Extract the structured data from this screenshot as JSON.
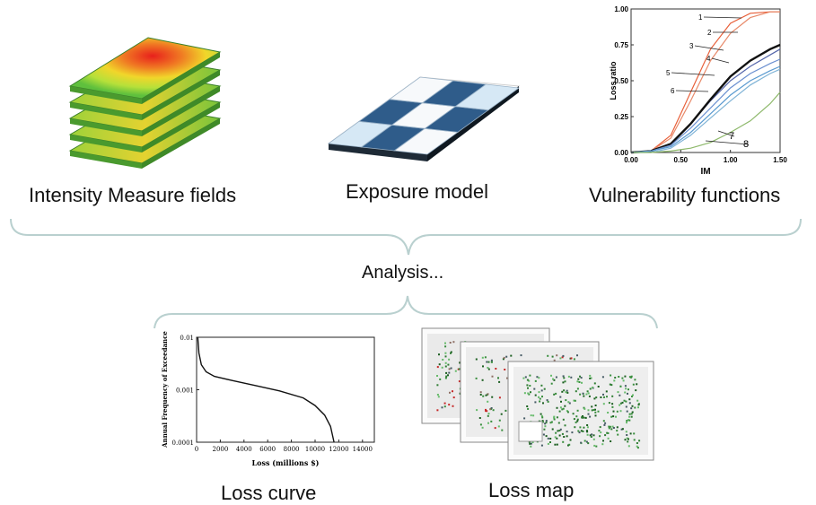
{
  "top_labels": {
    "intensity": "Intensity Measure fields",
    "exposure": "Exposure model",
    "vulnerability": "Vulnerability functions"
  },
  "analysis_label": "Analysis...",
  "bottom_labels": {
    "loss_curve": "Loss curve",
    "loss_map": "Loss map"
  },
  "colors": {
    "brace": "#b9d0cf",
    "exposure_dark": "#2f5c8a",
    "exposure_light": "#d6e8f5"
  },
  "chart_data": [
    {
      "type": "line",
      "title": "",
      "xlabel": "IM",
      "ylabel": "Loss ratio",
      "xlim": [
        0,
        1.5
      ],
      "ylim": [
        0,
        1
      ],
      "x_ticks": [
        "0.00",
        "0.50",
        "1.00",
        "1.50"
      ],
      "y_ticks": [
        "0.00",
        "0.25",
        "0.50",
        "0.75",
        "1.00"
      ],
      "curve_labels": [
        "1",
        "2",
        "3",
        "4",
        "5",
        "6",
        "7",
        "8"
      ],
      "series": [
        {
          "name": "1",
          "x": [
            0,
            0.2,
            0.4,
            0.6,
            0.8,
            1.0,
            1.2,
            1.4,
            1.5
          ],
          "y": [
            0,
            0.01,
            0.12,
            0.42,
            0.72,
            0.9,
            0.97,
            0.98,
            0.98
          ]
        },
        {
          "name": "2",
          "x": [
            0,
            0.2,
            0.4,
            0.6,
            0.8,
            1.0,
            1.2,
            1.4,
            1.5
          ],
          "y": [
            0,
            0.01,
            0.1,
            0.36,
            0.64,
            0.83,
            0.94,
            0.98,
            0.98
          ]
        },
        {
          "name": "3",
          "x": [
            0,
            0.2,
            0.4,
            0.6,
            0.8,
            1.0,
            1.2,
            1.4,
            1.5
          ],
          "y": [
            0,
            0.01,
            0.06,
            0.2,
            0.36,
            0.5,
            0.6,
            0.68,
            0.72
          ]
        },
        {
          "name": "4",
          "x": [
            0,
            0.2,
            0.4,
            0.6,
            0.8,
            1.0,
            1.2,
            1.4,
            1.5
          ],
          "y": [
            0,
            0.01,
            0.06,
            0.2,
            0.37,
            0.53,
            0.64,
            0.72,
            0.75
          ]
        },
        {
          "name": "5",
          "x": [
            0,
            0.2,
            0.4,
            0.6,
            0.8,
            1.0,
            1.2,
            1.4,
            1.5
          ],
          "y": [
            0,
            0.01,
            0.05,
            0.17,
            0.31,
            0.45,
            0.55,
            0.62,
            0.65
          ]
        },
        {
          "name": "6",
          "x": [
            0,
            0.2,
            0.4,
            0.6,
            0.8,
            1.0,
            1.2,
            1.4,
            1.5
          ],
          "y": [
            0,
            0.01,
            0.04,
            0.14,
            0.27,
            0.4,
            0.5,
            0.57,
            0.6
          ]
        },
        {
          "name": "7",
          "x": [
            0,
            0.2,
            0.4,
            0.6,
            0.8,
            1.0,
            1.2,
            1.4,
            1.5
          ],
          "y": [
            0,
            0.0,
            0.03,
            0.12,
            0.24,
            0.36,
            0.47,
            0.55,
            0.58
          ]
        },
        {
          "name": "8",
          "x": [
            0,
            0.2,
            0.4,
            0.6,
            0.8,
            1.0,
            1.2,
            1.4,
            1.5
          ],
          "y": [
            0,
            0.0,
            0.01,
            0.03,
            0.07,
            0.14,
            0.22,
            0.34,
            0.42
          ]
        }
      ]
    },
    {
      "type": "line",
      "title": "",
      "xlabel": "Loss (millions $)",
      "ylabel": "Annual Frequency of Exceedance",
      "xlim": [
        0,
        15000
      ],
      "y_scale": "log",
      "ylim": [
        0.0001,
        0.01
      ],
      "x_ticks": [
        "0",
        "2000",
        "4000",
        "6000",
        "8000",
        "10000",
        "12000",
        "14000"
      ],
      "y_ticks": [
        "0.01",
        "0.001",
        "0.0001"
      ],
      "series": [
        {
          "x": [
            100,
            200,
            400,
            800,
            1500,
            3000,
            5000,
            7000,
            9000,
            10000,
            10800,
            11300,
            11600
          ],
          "y": [
            0.01,
            0.005,
            0.003,
            0.0022,
            0.0018,
            0.0015,
            0.0012,
            0.00095,
            0.0007,
            0.0005,
            0.00033,
            0.0002,
            0.0001
          ]
        }
      ]
    }
  ]
}
